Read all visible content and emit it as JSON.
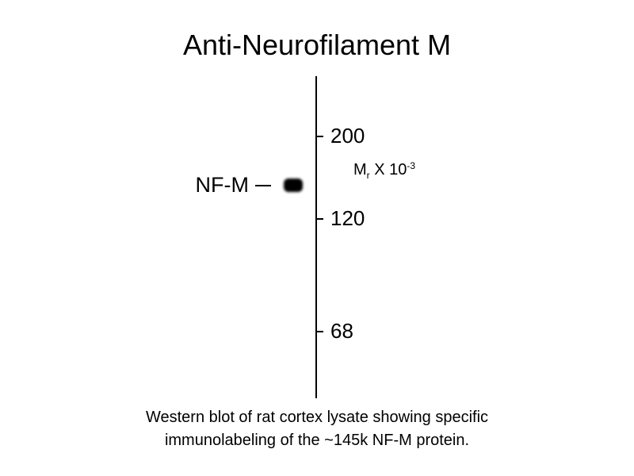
{
  "title": "Anti-Neurofilament M",
  "markers": [
    {
      "label": "200",
      "value": 200
    },
    {
      "label": "120",
      "value": 120
    },
    {
      "label": "68",
      "value": 68
    }
  ],
  "units": {
    "main": "M",
    "sub": "r",
    "mid": " X 10",
    "sup": "-3"
  },
  "band": {
    "label": "NF-M",
    "color": "#000000"
  },
  "caption": {
    "line1": "Western blot of rat cortex lysate showing specific",
    "line2": "immunolabeling of the ~145k NF-M protein."
  }
}
